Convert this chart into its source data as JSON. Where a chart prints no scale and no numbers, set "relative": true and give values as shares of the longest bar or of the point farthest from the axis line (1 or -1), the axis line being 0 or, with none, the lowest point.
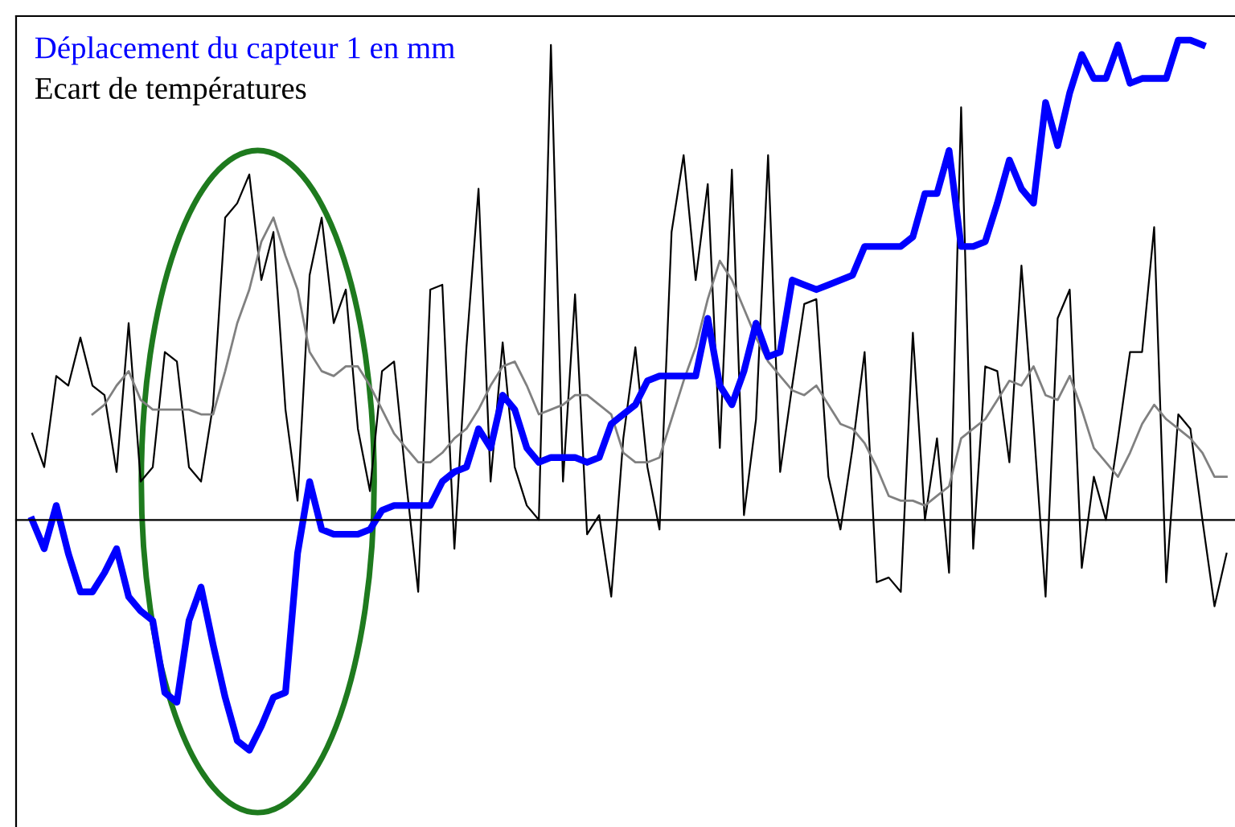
{
  "chart_data": {
    "type": "line",
    "relative": true,
    "legend": "top left",
    "marker": "none",
    "line_style": "solid",
    "categories": [
      null,
      null,
      null,
      null,
      null,
      null,
      null,
      null,
      null,
      null,
      null,
      null,
      null,
      null,
      null,
      null,
      null,
      null,
      null,
      null,
      null,
      null,
      null,
      null,
      null,
      null,
      null,
      null,
      null,
      null,
      null,
      null,
      null,
      null,
      null,
      null,
      null,
      null,
      null,
      null,
      null,
      null,
      null,
      null,
      null,
      null,
      null,
      null,
      null,
      null,
      null,
      null,
      null,
      null,
      null,
      null,
      null,
      null,
      null,
      null,
      null,
      null,
      null,
      null,
      null,
      null,
      null,
      null,
      null,
      null,
      null,
      null,
      null,
      null,
      null,
      null,
      null,
      null,
      null,
      null,
      null,
      null,
      null,
      null,
      null,
      null,
      null,
      null,
      null,
      null,
      null,
      null,
      null,
      null,
      null,
      null,
      null,
      null,
      null,
      null
    ],
    "series": [
      {
        "name": "Ecart de températures",
        "color": "#000000",
        "values": [
          0.18,
          0.11,
          0.3,
          0.28,
          0.38,
          0.28,
          0.26,
          0.1,
          0.41,
          0.08,
          0.11,
          0.35,
          0.33,
          0.11,
          0.08,
          0.24,
          0.63,
          0.66,
          0.72,
          0.5,
          0.6,
          0.23,
          0.04,
          0.51,
          0.63,
          0.41,
          0.48,
          0.19,
          0.06,
          0.31,
          0.33,
          0.08,
          -0.15,
          0.48,
          0.49,
          -0.06,
          0.36,
          0.69,
          0.08,
          0.37,
          0.11,
          0.03,
          0.0,
          0.99,
          0.08,
          0.47,
          -0.03,
          0.01,
          -0.16,
          0.17,
          0.36,
          0.11,
          -0.02,
          0.6,
          0.76,
          0.5,
          0.7,
          0.15,
          0.73,
          0.01,
          0.21,
          0.76,
          0.1,
          0.28,
          0.45,
          0.46,
          0.09,
          -0.02,
          0.15,
          0.35,
          -0.13,
          -0.12,
          -0.15,
          0.39,
          0.0,
          0.17,
          -0.11,
          0.86,
          -0.06,
          0.32,
          0.31,
          0.12,
          0.53,
          0.2,
          -0.16,
          0.42,
          0.48,
          -0.1,
          0.09,
          0.0,
          0.17,
          0.35,
          0.35,
          0.61,
          -0.13,
          0.22,
          0.19,
          0.0,
          -0.18,
          -0.07
        ]
      },
      {
        "color": "#808080",
        "values": [
          null,
          null,
          null,
          null,
          null,
          0.22,
          0.24,
          0.28,
          0.31,
          0.25,
          0.23,
          0.23,
          0.23,
          0.23,
          0.22,
          0.22,
          0.31,
          0.41,
          0.48,
          0.58,
          0.63,
          0.55,
          0.48,
          0.35,
          0.31,
          0.3,
          0.32,
          0.32,
          0.28,
          0.23,
          0.18,
          0.15,
          0.12,
          0.12,
          0.14,
          0.17,
          0.19,
          0.23,
          0.28,
          0.32,
          0.33,
          0.28,
          0.22,
          0.23,
          0.24,
          0.26,
          0.26,
          0.24,
          0.22,
          0.14,
          0.12,
          0.12,
          0.13,
          0.21,
          0.29,
          0.36,
          0.46,
          0.54,
          0.5,
          0.44,
          0.38,
          0.33,
          0.3,
          0.27,
          0.26,
          0.28,
          0.24,
          0.2,
          0.19,
          0.16,
          0.11,
          0.05,
          0.04,
          0.04,
          0.03,
          0.05,
          0.07,
          0.17,
          0.19,
          0.21,
          0.25,
          0.29,
          0.28,
          0.32,
          0.26,
          0.25,
          0.3,
          0.23,
          0.15,
          0.12,
          0.09,
          0.14,
          0.2,
          0.24,
          0.21,
          0.19,
          0.17,
          0.14,
          0.09,
          0.09
        ]
      },
      {
        "name": "Déplacement du capteur 1 en mm",
        "color": "#0000ff",
        "values": [
          0.0,
          -0.06,
          0.03,
          -0.07,
          -0.15,
          -0.15,
          -0.11,
          -0.06,
          -0.16,
          -0.19,
          -0.21,
          -0.36,
          -0.38,
          -0.21,
          -0.14,
          -0.26,
          -0.37,
          -0.46,
          -0.48,
          -0.43,
          -0.37,
          -0.36,
          -0.07,
          0.08,
          -0.02,
          -0.03,
          -0.03,
          -0.03,
          -0.02,
          0.02,
          0.03,
          0.03,
          0.03,
          0.03,
          0.08,
          0.1,
          0.11,
          0.19,
          0.15,
          0.26,
          0.23,
          0.15,
          0.12,
          0.13,
          0.13,
          0.13,
          0.12,
          0.13,
          0.2,
          0.22,
          0.24,
          0.29,
          0.3,
          0.3,
          0.3,
          0.3,
          0.42,
          0.28,
          0.24,
          0.31,
          0.41,
          0.34,
          0.35,
          0.5,
          0.49,
          0.48,
          0.49,
          0.5,
          0.51,
          0.57,
          0.57,
          0.57,
          0.57,
          0.59,
          0.68,
          0.68,
          0.77,
          0.57,
          0.57,
          0.58,
          0.66,
          0.75,
          0.69,
          0.66,
          0.87,
          0.78,
          0.89,
          0.97,
          0.92,
          0.92,
          0.99,
          0.91,
          0.92,
          0.92,
          0.92,
          1.0,
          1.0,
          0.99,
          null,
          null
        ]
      }
    ]
  }
}
